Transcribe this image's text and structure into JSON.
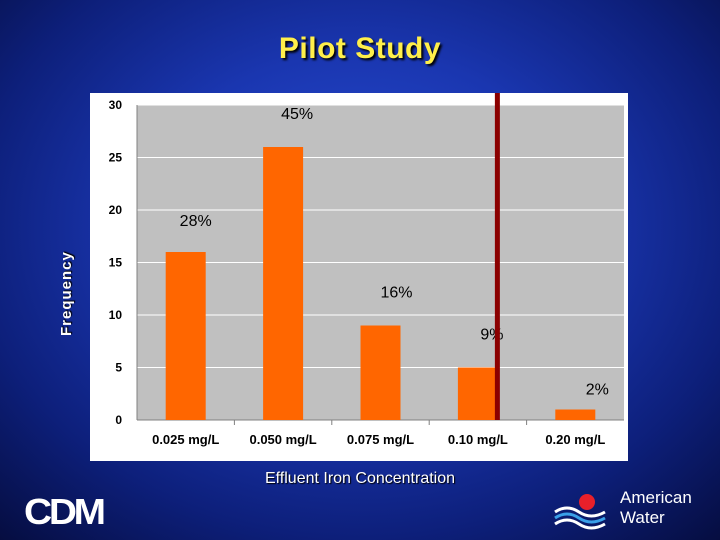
{
  "title": "Pilot Study",
  "logos": {
    "left": "CDM",
    "right_line1": "American",
    "right_line2": "Water"
  },
  "colors": {
    "bar": "#ff6600",
    "limit_line": "#8b0000",
    "plot_bg": "#c0c0c0",
    "title": "#ffef4a"
  },
  "chart_data": {
    "type": "bar",
    "title": "Pilot Study",
    "xlabel": "Effluent Iron Concentration",
    "ylabel": "Frequency",
    "categories": [
      "0.025 mg/L",
      "0.050 mg/L",
      "0.075 mg/L",
      "0.10 mg/L",
      "0.20 mg/L"
    ],
    "values": [
      16,
      26,
      9,
      5,
      1
    ],
    "data_labels": [
      "28%",
      "45%",
      "16%",
      "9%",
      "2%"
    ],
    "ylim": [
      0,
      30
    ],
    "yticks": [
      0,
      5,
      10,
      15,
      20,
      25,
      30
    ],
    "grid": true,
    "reference_line": {
      "type": "vertical",
      "position_between": [
        "0.10 mg/L",
        "0.20 mg/L"
      ],
      "color": "#8b0000"
    }
  }
}
